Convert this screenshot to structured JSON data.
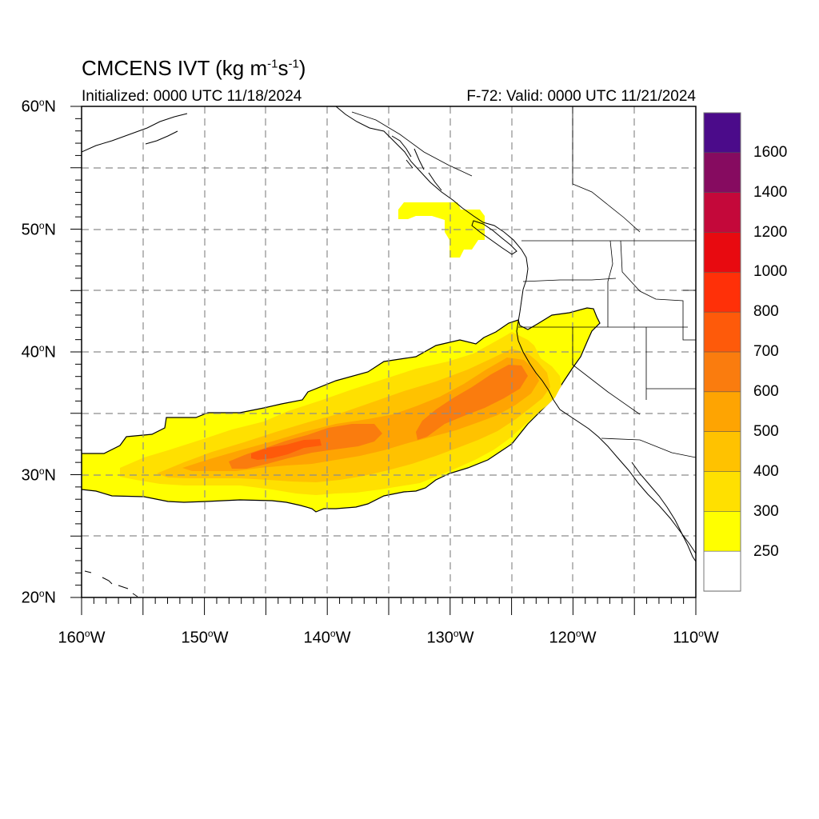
{
  "header": {
    "title_main": "CMCENS IVT (kg m",
    "title_exp1": "-1",
    "title_mid": "s",
    "title_exp2": "-1",
    "title_end": ")",
    "initialized": "Initialized: 0000 UTC 11/18/2024",
    "valid": "F-72: Valid: 0000 UTC 11/21/2024"
  },
  "axes": {
    "degree_symbol": "o",
    "lat_ticks": [
      {
        "num": "60",
        "hem": "N"
      },
      {
        "num": "50",
        "hem": "N"
      },
      {
        "num": "40",
        "hem": "N"
      },
      {
        "num": "30",
        "hem": "N"
      },
      {
        "num": "20",
        "hem": "N"
      }
    ],
    "lon_ticks": [
      {
        "num": "160",
        "hem": "W"
      },
      {
        "num": "150",
        "hem": "W"
      },
      {
        "num": "140",
        "hem": "W"
      },
      {
        "num": "130",
        "hem": "W"
      },
      {
        "num": "120",
        "hem": "W"
      },
      {
        "num": "110",
        "hem": "W"
      }
    ],
    "lat_range": [
      20,
      60
    ],
    "lon_range": [
      -160,
      -110
    ],
    "grid": "dashed every 5 degrees"
  },
  "colorbar": {
    "labels": [
      "1600",
      "1400",
      "1200",
      "1000",
      "800",
      "700",
      "600",
      "500",
      "400",
      "300",
      "250"
    ],
    "colors_top_to_bottom": [
      "#4b0b8a",
      "#860b60",
      "#c4083a",
      "#e80a10",
      "#ff3008",
      "#fe5a0a",
      "#fa7c0e",
      "#fea402",
      "#ffc200",
      "#ffe000",
      "#ffff00",
      "#ffffff"
    ]
  },
  "ivt_colors": {
    "c250": "#ffff00",
    "c300": "#ffe000",
    "c400": "#ffc200",
    "c500": "#fea402",
    "c600": "#fa7c0e",
    "c700": "#fe5a0a"
  }
}
